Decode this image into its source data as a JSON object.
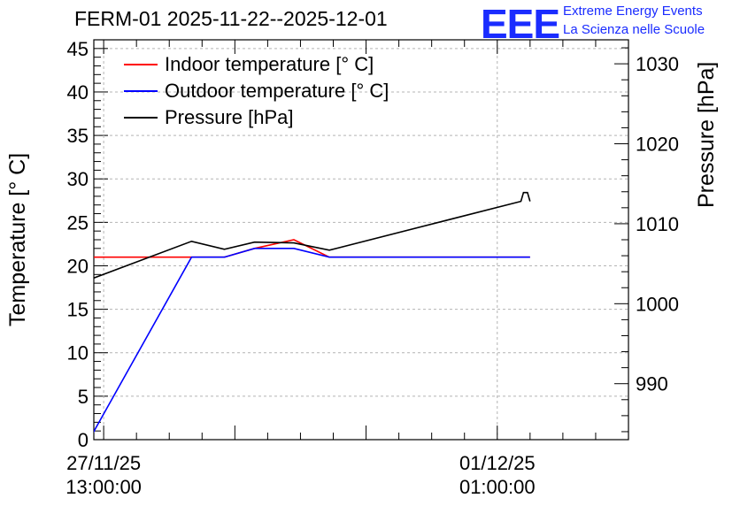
{
  "logo": {
    "mark": "EEE",
    "line1": "Extreme Energy Events",
    "line2": "La Scienza nelle Scuole"
  },
  "colors": {
    "indoor": "#ff0000",
    "outdoor": "#0000ff",
    "pressure": "#000000"
  },
  "chart_data": {
    "type": "line",
    "title": "FERM-01 2025-11-22--2025-12-01",
    "ylabel": "Temperature [° C]",
    "y2label": "Pressure [hPa]",
    "ylim": [
      0,
      46
    ],
    "y2lim": [
      983,
      1033
    ],
    "xlim": [
      0.925,
      5.0
    ],
    "y_ticks": [
      "0",
      "5",
      "10",
      "15",
      "20",
      "25",
      "30",
      "35",
      "40",
      "45"
    ],
    "y2_ticks": [
      "990",
      "1000",
      "1010",
      "1020",
      "1030"
    ],
    "x_ticks": [
      {
        "value": 1.0,
        "line1": "27/11/25",
        "line2": "13:00:00"
      },
      {
        "value": 4.0,
        "line1": "01/12/25",
        "line2": "01:00:00"
      }
    ],
    "legend": [
      "Indoor temperature [° C]",
      "Outdoor temperature [° C]",
      "Pressure [hPa]"
    ],
    "series": [
      {
        "name": "Indoor temperature [° C]",
        "axis": "left",
        "x": [
          0.89,
          1.67,
          1.92,
          2.15,
          2.45,
          2.72,
          4.25
        ],
        "y": [
          21,
          21,
          21,
          22,
          23,
          21,
          21
        ]
      },
      {
        "name": "Outdoor temperature [° C]",
        "axis": "left",
        "x": [
          0.89,
          1.67,
          1.92,
          2.15,
          2.45,
          2.72,
          4.25
        ],
        "y": [
          0,
          21,
          21,
          22,
          22,
          21,
          21
        ]
      },
      {
        "name": "Pressure [hPa]",
        "axis": "right",
        "x": [
          0.89,
          1.67,
          1.92,
          2.15,
          2.45,
          2.72,
          4.18,
          4.2,
          4.23,
          4.25
        ],
        "y": [
          1003,
          1007.8,
          1006.8,
          1007.7,
          1007.6,
          1006.7,
          1012.8,
          1013.9,
          1013.9,
          1012.8
        ]
      }
    ]
  }
}
